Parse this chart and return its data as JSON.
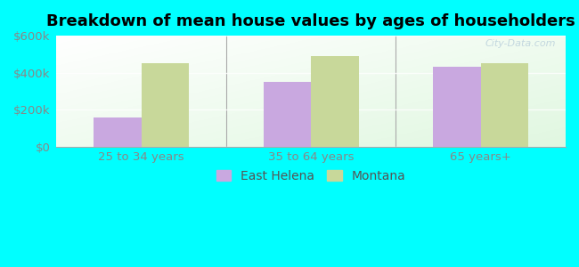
{
  "title": "Breakdown of mean house values by ages of householders",
  "categories": [
    "25 to 34 years",
    "35 to 64 years",
    "65 years+"
  ],
  "east_helena": [
    160000,
    350000,
    430000
  ],
  "montana": [
    450000,
    490000,
    450000
  ],
  "east_helena_color": "#c9a8e0",
  "montana_color": "#c8d89a",
  "background_color": "#00ffff",
  "ylim": [
    0,
    600000
  ],
  "yticks": [
    0,
    200000,
    400000,
    600000
  ],
  "ytick_labels": [
    "$0",
    "$200k",
    "$400k",
    "$600k"
  ],
  "legend_labels": [
    "East Helena",
    "Montana"
  ],
  "bar_width": 0.28,
  "title_fontsize": 13,
  "tick_fontsize": 9.5,
  "legend_fontsize": 10,
  "watermark": "City-Data.com"
}
